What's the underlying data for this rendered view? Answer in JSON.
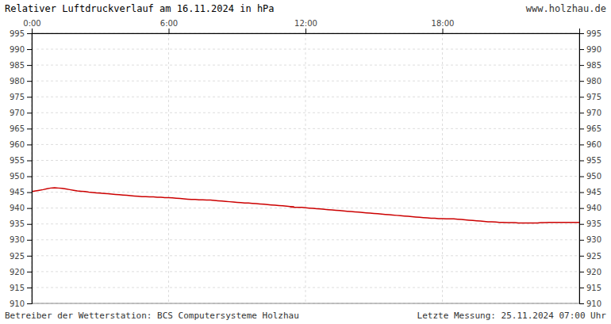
{
  "chart_data": {
    "type": "line",
    "title": "Relativer Luftdruckverlauf am 16.11.2024 in hPa",
    "annotations": [
      "www.holzhau.de",
      "Betreiber der Wetterstation: BCS Computersysteme Holzhau",
      "Letzte Messung: 25.11.2024 07:00 Uhr"
    ],
    "x": [
      0,
      10,
      20,
      30,
      40,
      50,
      60,
      70,
      80,
      90,
      100,
      110,
      120,
      130,
      140,
      150,
      160,
      170,
      180,
      190,
      200,
      210,
      220,
      230,
      240,
      250,
      260,
      270,
      280,
      290,
      300,
      310,
      320,
      330,
      340,
      350,
      360,
      370,
      380,
      390,
      400,
      410,
      420,
      430,
      440,
      450,
      460,
      470,
      480,
      490,
      500,
      510,
      520,
      530,
      540,
      550,
      560,
      570,
      580,
      590,
      600,
      610,
      620,
      630,
      640,
      650,
      660,
      670,
      680,
      690,
      680,
      700,
      710,
      720,
      730,
      740,
      750,
      760,
      770,
      780,
      790,
      800,
      810,
      820,
      830,
      840,
      850,
      860,
      870,
      880,
      890,
      900,
      910,
      920,
      930,
      940,
      950,
      960,
      970,
      980,
      990,
      1000,
      1010,
      1020,
      1030,
      1040,
      1050,
      1060,
      1070,
      1080,
      1090,
      1100,
      1110,
      1120,
      1130,
      1140,
      1150,
      1160,
      1170,
      1180,
      1190,
      1200,
      1210,
      1220,
      1230,
      1240,
      1250,
      1260,
      1270,
      1280,
      1290,
      1300,
      1310,
      1320,
      1330,
      1340,
      1350,
      1360,
      1370,
      1380,
      1390,
      1400,
      1410,
      1420,
      1430,
      1440
    ],
    "series": [
      {
        "color": "#cc0000",
        "values": [
          945.2,
          945.4,
          945.6,
          945.8,
          946.1,
          946.3,
          946.4,
          946.3,
          946.2,
          946.0,
          945.8,
          945.6,
          945.4,
          945.3,
          945.2,
          945.0,
          944.9,
          944.8,
          944.7,
          944.6,
          944.5,
          944.4,
          944.3,
          944.2,
          944.1,
          944.0,
          943.9,
          943.8,
          943.7,
          943.6,
          943.6,
          943.5,
          943.5,
          943.4,
          943.4,
          943.3,
          943.3,
          943.2,
          943.1,
          943.0,
          942.9,
          942.8,
          942.7,
          942.7,
          942.6,
          942.6,
          942.5,
          942.5,
          942.4,
          942.3,
          942.2,
          942.1,
          942.0,
          941.9,
          941.8,
          941.7,
          941.6,
          941.6,
          941.5,
          941.4,
          941.3,
          941.2,
          941.1,
          941.0,
          940.9,
          940.8,
          940.7,
          940.6,
          940.5,
          940.4,
          940.3,
          940.2,
          940.2,
          940.1,
          940.0,
          939.9,
          939.8,
          939.7,
          939.6,
          939.5,
          939.4,
          939.3,
          939.2,
          939.1,
          939.0,
          938.9,
          938.8,
          938.7,
          938.6,
          938.5,
          938.4,
          938.3,
          938.2,
          938.1,
          938.0,
          937.9,
          937.8,
          937.7,
          937.6,
          937.5,
          937.4,
          937.3,
          937.2,
          937.1,
          937.0,
          936.9,
          936.8,
          936.8,
          936.7,
          936.7,
          936.6,
          936.6,
          936.6,
          936.5,
          936.4,
          936.3,
          936.2,
          936.1,
          936.0,
          935.9,
          935.8,
          935.7,
          935.7,
          935.6,
          935.5,
          935.5,
          935.4,
          935.4,
          935.4,
          935.3,
          935.3,
          935.3,
          935.3,
          935.3,
          935.3,
          935.4,
          935.4,
          935.5,
          935.5,
          935.5,
          935.5,
          935.5,
          935.5,
          935.5,
          935.5,
          935.5
        ]
      }
    ],
    "xlim": [
      0,
      1440
    ],
    "xticks": [
      {
        "value": 0,
        "label": "0:00"
      },
      {
        "value": 360,
        "label": "6:00"
      },
      {
        "value": 720,
        "label": "12:00"
      },
      {
        "value": 1080,
        "label": "18:00"
      }
    ],
    "ylim": [
      910,
      995
    ],
    "yticks": [
      910,
      915,
      920,
      925,
      930,
      935,
      940,
      945,
      950,
      955,
      960,
      965,
      970,
      975,
      980,
      985,
      990,
      995
    ],
    "y2lim": [
      910,
      995
    ],
    "y2ticks": [
      910,
      915,
      920,
      925,
      930,
      935,
      940,
      945,
      950,
      955,
      960,
      965,
      970,
      975,
      980,
      985,
      990,
      995
    ],
    "grid": true
  }
}
